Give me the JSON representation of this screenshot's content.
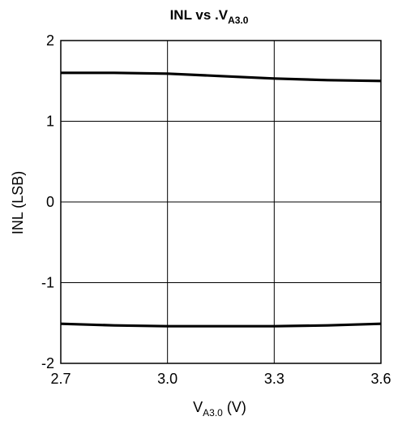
{
  "chart_data": {
    "type": "line",
    "title": {
      "main": "INL vs .V",
      "sub": "A3.0"
    },
    "xlabel": {
      "main": "V",
      "sub": "A3.0",
      "suffix": " (V)"
    },
    "ylabel": "INL (LSB)",
    "xlim": [
      2.7,
      3.6
    ],
    "ylim": [
      -2,
      2
    ],
    "x_ticks": [
      2.7,
      3.0,
      3.3,
      3.6
    ],
    "x_tick_labels": [
      "2.7",
      "3.0",
      "3.3",
      "3.6"
    ],
    "y_ticks": [
      2,
      1,
      0,
      -1,
      -2
    ],
    "y_tick_labels": [
      "2",
      "1",
      "0",
      "-1",
      "-2"
    ],
    "grid": true,
    "legend": "none",
    "line_color": "#000000",
    "series": [
      {
        "x": [
          2.7,
          2.85,
          3.0,
          3.15,
          3.3,
          3.45,
          3.6
        ],
        "y": [
          1.6,
          1.6,
          1.59,
          1.56,
          1.53,
          1.51,
          1.5
        ]
      },
      {
        "x": [
          2.7,
          2.85,
          3.0,
          3.15,
          3.3,
          3.45,
          3.6
        ],
        "y": [
          -1.51,
          -1.53,
          -1.54,
          -1.54,
          -1.54,
          -1.53,
          -1.51
        ]
      }
    ]
  }
}
